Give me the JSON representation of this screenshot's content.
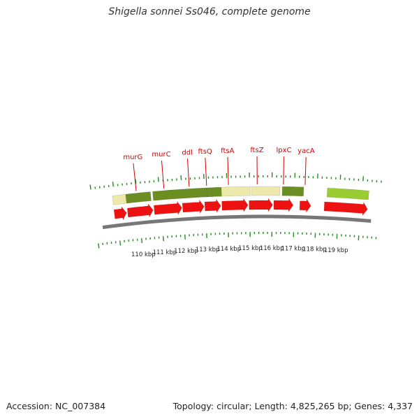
{
  "title": "Shigella sonnei Ss046, complete genome",
  "footer": {
    "accession": "Accession: NC_007384",
    "summary": "Topology: circular; Length: 4,825,265 bp; Genes: 4,337"
  },
  "colors": {
    "cds": "#ee1111",
    "feature_dark": "#6b8e23",
    "feature_light": "#eee8aa",
    "feature_bright": "#9acd32",
    "tick": "#228b22",
    "backbone": "#777777",
    "gene_label": "#d40000"
  },
  "genes": [
    {
      "name": "murG",
      "position_kbp": 109.98
    },
    {
      "name": "murC",
      "position_kbp": 111.21
    },
    {
      "name": "ddl",
      "position_kbp": 112.33
    },
    {
      "name": "ftsQ",
      "position_kbp": 113.1
    },
    {
      "name": "ftsA",
      "position_kbp": 114.07
    },
    {
      "name": "ftsZ",
      "position_kbp": 115.34
    },
    {
      "name": "lpxC",
      "position_kbp": 116.5
    },
    {
      "name": "yacA",
      "position_kbp": 117.46
    }
  ],
  "kbp_ticks": [
    "110 kbp",
    "111 kbp",
    "112 kbp",
    "113 kbp",
    "114 kbp",
    "115 kbp",
    "116 kbp",
    "117 kbp",
    "118 kbp",
    "119 kbp"
  ],
  "feature_blocks": [
    {
      "start_kbp": 108.9,
      "end_kbp": 109.5,
      "type": "light"
    },
    {
      "start_kbp": 109.5,
      "end_kbp": 110.6,
      "type": "dark"
    },
    {
      "start_kbp": 110.7,
      "end_kbp": 113.1,
      "type": "dark"
    },
    {
      "start_kbp": 113.1,
      "end_kbp": 113.75,
      "type": "dark"
    },
    {
      "start_kbp": 113.75,
      "end_kbp": 115.05,
      "type": "light"
    },
    {
      "start_kbp": 115.1,
      "end_kbp": 116.35,
      "type": "light"
    },
    {
      "start_kbp": 116.45,
      "end_kbp": 117.4,
      "type": "dark"
    },
    {
      "start_kbp": 118.45,
      "end_kbp": 120.3,
      "type": "bright"
    }
  ],
  "cds_arrows": [
    {
      "start_kbp": 108.9,
      "end_kbp": 109.45
    },
    {
      "start_kbp": 109.5,
      "end_kbp": 110.65
    },
    {
      "start_kbp": 110.7,
      "end_kbp": 111.95
    },
    {
      "start_kbp": 111.98,
      "end_kbp": 112.95
    },
    {
      "start_kbp": 112.98,
      "end_kbp": 113.7
    },
    {
      "start_kbp": 113.75,
      "end_kbp": 114.92
    },
    {
      "start_kbp": 114.97,
      "end_kbp": 116.03
    },
    {
      "start_kbp": 116.08,
      "end_kbp": 116.95
    },
    {
      "start_kbp": 117.25,
      "end_kbp": 117.75
    },
    {
      "start_kbp": 118.35,
      "end_kbp": 120.3
    }
  ]
}
